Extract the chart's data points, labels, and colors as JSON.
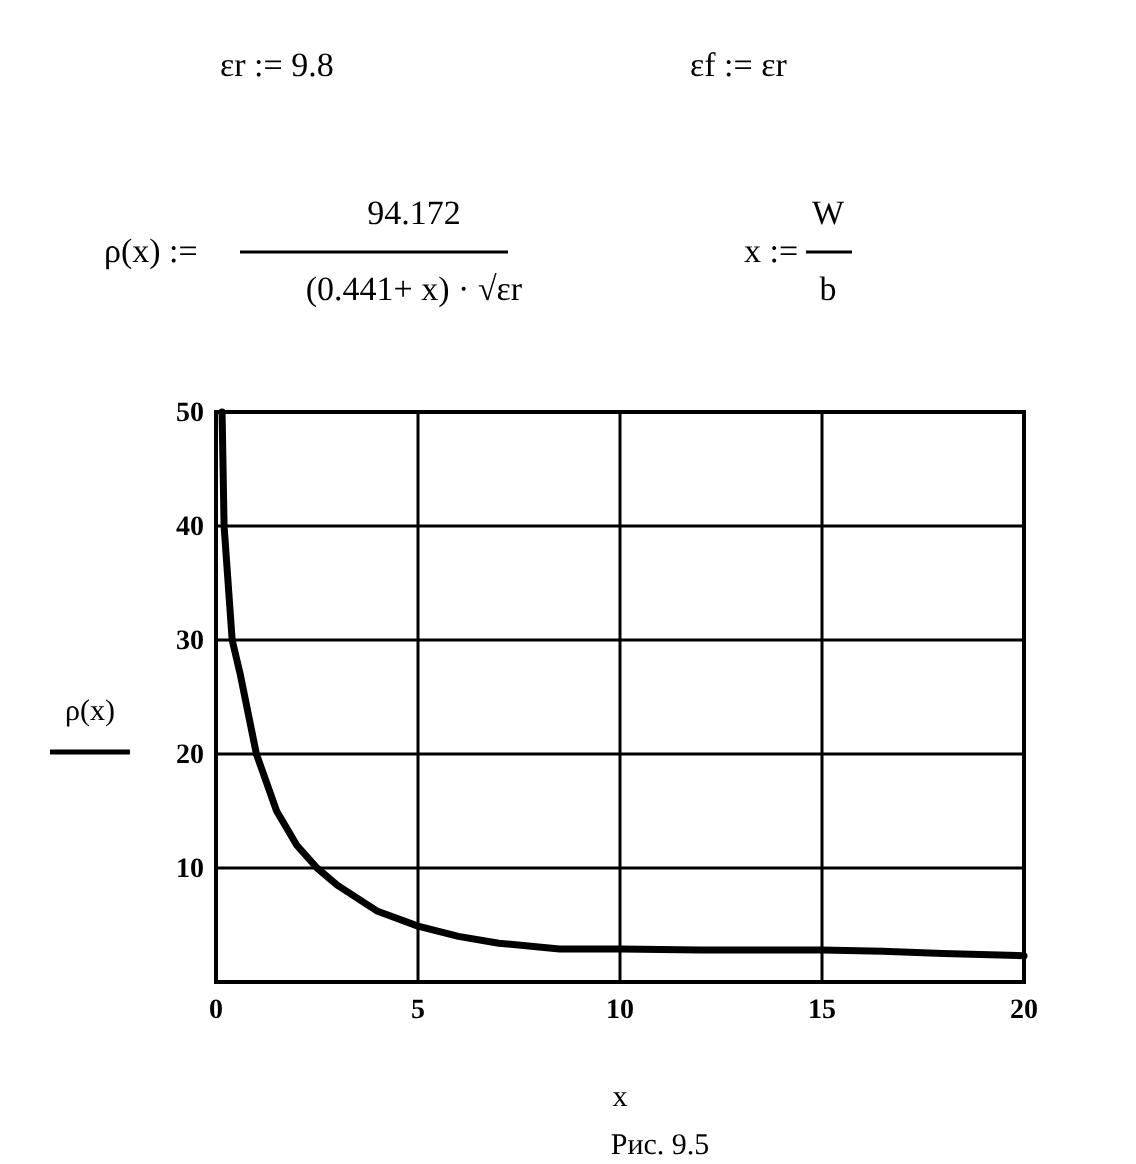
{
  "chart_data": {
    "type": "line",
    "xlabel": "x",
    "ylabel": "ρ(x)",
    "annotations": [
      "εr := 9.8",
      "εf := εr",
      "ρ(x) :=",
      "94.172",
      "(0.441+ x) · √εr",
      "x :=",
      "W",
      "b",
      "Рис. 9.5"
    ],
    "x": [
      0.15,
      0.2,
      0.4,
      0.6,
      1,
      1.5,
      2,
      2.5,
      3,
      4,
      5,
      6,
      7,
      8.5,
      10,
      12,
      15,
      16.5,
      18,
      20
    ],
    "series": [
      {
        "color": "#000000",
        "values": [
          50,
          40,
          30,
          27,
          20,
          15,
          12,
          10,
          8.5,
          6.2,
          4.9,
          4,
          3.4,
          2.9,
          2.9,
          2.8,
          2.8,
          2.7,
          2.5,
          2.3
        ]
      }
    ],
    "xlim": [
      0,
      20
    ],
    "ylim": [
      0,
      50
    ],
    "xticks": [
      0,
      5,
      10,
      15,
      20
    ],
    "yticks": [
      10,
      20,
      30,
      40,
      50
    ],
    "grid": true,
    "line_style": "solid",
    "marker": "none"
  }
}
